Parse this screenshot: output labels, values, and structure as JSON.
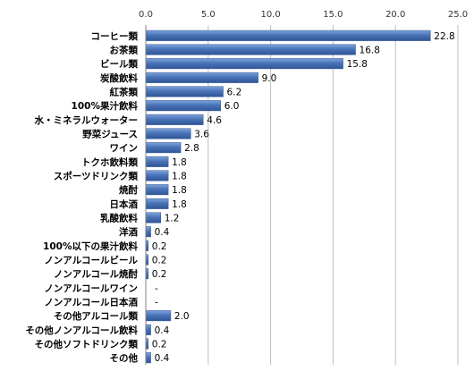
{
  "chart_data": {
    "type": "bar",
    "orientation": "horizontal",
    "categories": [
      "コーヒー類",
      "お茶類",
      "ビール類",
      "炭酸飲料",
      "紅茶類",
      "100%果汁飲料",
      "水・ミネラルウォーター",
      "野菜ジュース",
      "ワイン",
      "トクホ飲料類",
      "スポーツドリンク類",
      "焼酎",
      "日本酒",
      "乳酸飲料",
      "洋酒",
      "100%以下の果汁飲料",
      "ノンアルコールビール",
      "ノンアルコール焼酎",
      "ノンアルコールワイン",
      "ノンアルコール日本酒",
      "その他アルコール類",
      "その他ノンアルコール飲料",
      "その他ソフトドリンク類",
      "その他"
    ],
    "values": [
      22.8,
      16.8,
      15.8,
      9.0,
      6.2,
      6.0,
      4.6,
      3.6,
      2.8,
      1.8,
      1.8,
      1.8,
      1.8,
      1.2,
      0.4,
      0.2,
      0.2,
      0.2,
      null,
      null,
      2.0,
      0.4,
      0.2,
      0.4
    ],
    "value_labels": [
      "22.8",
      "16.8",
      "15.8",
      "9.0",
      "6.2",
      "6.0",
      "4.6",
      "3.6",
      "2.8",
      "1.8",
      "1.8",
      "1.8",
      "1.8",
      "1.2",
      "0.4",
      "0.2",
      "0.2",
      "0.2",
      "-",
      "-",
      "2.0",
      "0.4",
      "0.2",
      "0.4"
    ],
    "xlim": [
      0,
      25
    ],
    "xticks": [
      "0.0",
      "5.0",
      "10.0",
      "15.0",
      "20.0",
      "25.0"
    ],
    "xtick_values": [
      0,
      5,
      10,
      15,
      20,
      25
    ],
    "x_axis_position": "top",
    "grid": true,
    "bar_color": "#4A74B8",
    "bar_color_light": "#7FA3DA",
    "bar_color_dark": "#2F5597"
  }
}
